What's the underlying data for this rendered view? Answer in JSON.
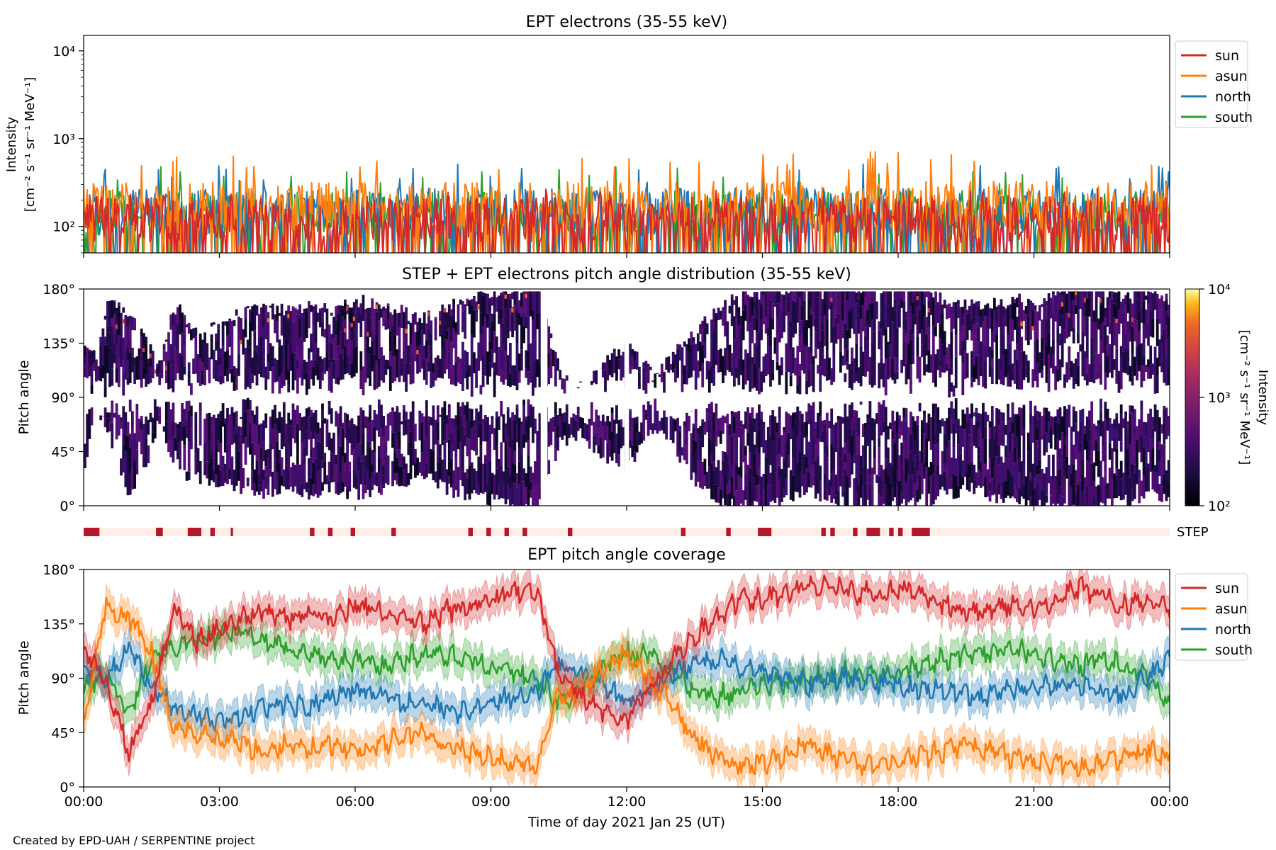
{
  "footer": "Created by EPD-UAH / SERPENTINE project",
  "colors": {
    "sun": "#d62728",
    "asun": "#ff7f0e",
    "north": "#1f77b4",
    "south": "#2ca02c",
    "step_bar": "#b2182b",
    "step_bg": "#fdeee8"
  },
  "chart_data": [
    {
      "type": "line",
      "title": "EPT electrons (35-55 keV)",
      "ylabel": "Intensity",
      "ylabel_units": "[cm⁻² s⁻¹ sr⁻¹ MeV⁻¹]",
      "yscale": "log",
      "ylim": [
        50,
        15000
      ],
      "yticks": [
        "10²",
        "10³",
        "10⁴"
      ],
      "ytick_values": [
        100,
        1000,
        10000
      ],
      "xlim_hours": [
        0,
        24
      ],
      "legend": "right",
      "series": [
        {
          "name": "sun",
          "typical": 120,
          "peak": 280
        },
        {
          "name": "asun",
          "typical": 180,
          "peak": 720
        },
        {
          "name": "north",
          "typical": 150,
          "peak": 520
        },
        {
          "name": "south",
          "typical": 140,
          "peak": 480
        }
      ]
    },
    {
      "type": "heatmap",
      "title": "STEP + EPT electrons pitch angle distribution (35-55 keV)",
      "ylabel": "Pitch angle",
      "yticks": [
        "0°",
        "45°",
        "90°",
        "135°",
        "180°"
      ],
      "ylim": [
        0,
        180
      ],
      "xlim_hours": [
        0,
        24
      ],
      "colorbar_label": "Intensity",
      "colorbar_units": "[cm⁻² s⁻¹ sr⁻¹ MeV⁻¹]",
      "colorbar_ticks": [
        "10²",
        "10³",
        "10⁴"
      ],
      "colorbar_range": [
        100,
        10000
      ],
      "colorscale": "inferno"
    },
    {
      "type": "bar",
      "label": "STEP",
      "coverage_hours": [
        [
          0.0,
          0.35
        ],
        [
          1.6,
          1.75
        ],
        [
          2.3,
          2.6
        ],
        [
          2.8,
          2.9
        ],
        [
          3.25,
          3.3
        ],
        [
          5.0,
          5.1
        ],
        [
          5.4,
          5.5
        ],
        [
          5.9,
          6.0
        ],
        [
          6.8,
          6.9
        ],
        [
          8.5,
          8.6
        ],
        [
          8.9,
          9.0
        ],
        [
          9.3,
          9.4
        ],
        [
          9.7,
          9.8
        ],
        [
          10.7,
          10.8
        ],
        [
          13.2,
          13.3
        ],
        [
          14.2,
          14.3
        ],
        [
          14.9,
          15.2
        ],
        [
          16.3,
          16.4
        ],
        [
          16.5,
          16.6
        ],
        [
          17.0,
          17.1
        ],
        [
          17.3,
          17.6
        ],
        [
          17.8,
          17.9
        ],
        [
          18.0,
          18.1
        ],
        [
          18.3,
          18.7
        ]
      ]
    },
    {
      "type": "line",
      "title": "EPT pitch angle coverage",
      "ylabel": "Pitch angle",
      "xlabel": "Time of day 2021 Jan 25 (UT)",
      "yticks": [
        "0°",
        "45°",
        "90°",
        "135°",
        "180°"
      ],
      "ylim": [
        0,
        180
      ],
      "xlim_hours": [
        0,
        24
      ],
      "xticks": [
        "00:00",
        "03:00",
        "06:00",
        "09:00",
        "12:00",
        "15:00",
        "18:00",
        "21:00",
        "00:00"
      ],
      "legend": "right",
      "x_hours": [
        0,
        0.5,
        1,
        1.5,
        2,
        2.5,
        3,
        3.5,
        4,
        4.5,
        5,
        5.5,
        6,
        6.5,
        7,
        7.5,
        8,
        8.5,
        9,
        9.5,
        10,
        10.5,
        11,
        11.5,
        12,
        12.5,
        13,
        13.5,
        14,
        14.5,
        15,
        15.5,
        16,
        16.5,
        17,
        17.5,
        18,
        18.5,
        19,
        19.5,
        20,
        20.5,
        21,
        21.5,
        22,
        22.5,
        23,
        23.5,
        24
      ],
      "series": [
        {
          "name": "sun",
          "values": [
            115,
            85,
            30,
            70,
            150,
            120,
            130,
            140,
            145,
            140,
            145,
            140,
            150,
            145,
            140,
            135,
            145,
            150,
            155,
            160,
            165,
            90,
            75,
            60,
            55,
            80,
            105,
            125,
            140,
            155,
            155,
            160,
            165,
            165,
            160,
            160,
            165,
            160,
            150,
            145,
            145,
            150,
            150,
            155,
            165,
            160,
            150,
            155,
            150
          ]
        },
        {
          "name": "asun",
          "values": [
            55,
            150,
            140,
            110,
            50,
            45,
            40,
            35,
            30,
            35,
            30,
            35,
            30,
            35,
            40,
            45,
            35,
            30,
            25,
            20,
            15,
            75,
            80,
            100,
            110,
            90,
            70,
            40,
            25,
            20,
            20,
            25,
            35,
            25,
            20,
            20,
            20,
            25,
            30,
            35,
            30,
            25,
            20,
            20,
            15,
            20,
            25,
            30,
            25
          ]
        },
        {
          "name": "north",
          "values": [
            100,
            90,
            115,
            85,
            65,
            60,
            55,
            60,
            65,
            70,
            65,
            75,
            80,
            75,
            70,
            65,
            65,
            60,
            70,
            75,
            80,
            100,
            95,
            85,
            70,
            80,
            95,
            100,
            105,
            100,
            95,
            90,
            85,
            90,
            90,
            85,
            85,
            80,
            80,
            75,
            75,
            80,
            80,
            85,
            85,
            80,
            75,
            90,
            105
          ]
        },
        {
          "name": "south",
          "values": [
            80,
            95,
            60,
            110,
            115,
            120,
            125,
            130,
            120,
            115,
            110,
            105,
            105,
            100,
            105,
            110,
            110,
            105,
            100,
            95,
            90,
            70,
            80,
            100,
            110,
            110,
            95,
            80,
            75,
            80,
            85,
            85,
            90,
            90,
            95,
            95,
            95,
            100,
            105,
            110,
            110,
            115,
            110,
            105,
            100,
            105,
            100,
            90,
            70
          ]
        }
      ]
    }
  ]
}
